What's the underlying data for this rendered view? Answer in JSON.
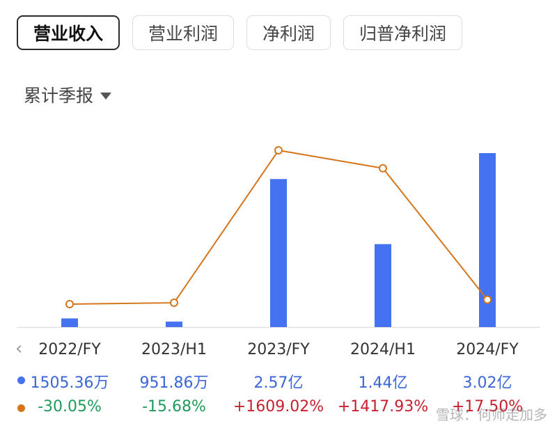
{
  "tabs": [
    {
      "label": "营业收入",
      "active": true
    },
    {
      "label": "营业利润",
      "active": false
    },
    {
      "label": "净利润",
      "active": false
    },
    {
      "label": "归普净利润",
      "active": false
    }
  ],
  "period_selector": {
    "label": "累计季报"
  },
  "colors": {
    "bar": "#4472f0",
    "line": "#d4751c",
    "positive": "#c8202f",
    "negative": "#1e9a5a",
    "value_text": "#3b66d8"
  },
  "chart_data": {
    "type": "bar",
    "categories": [
      "2022/FY",
      "2023/H1",
      "2023/FY",
      "2024/H1",
      "2024/FY"
    ],
    "series": [
      {
        "type": "bar",
        "values": [
          1505.36,
          951.86,
          25700,
          14400,
          30200
        ],
        "unit": "万",
        "labels": [
          "1505.36万",
          "951.86万",
          "2.57亿",
          "1.44亿",
          "3.02亿"
        ]
      },
      {
        "type": "line",
        "values": [
          -30.05,
          -15.68,
          1609.02,
          1417.93,
          17.5
        ],
        "unit": "%",
        "labels": [
          "-30.05%",
          "-15.68%",
          "+1609.02%",
          "+1417.93%",
          "+17.50%"
        ]
      }
    ]
  },
  "watermark": "雪球：何师走加多"
}
